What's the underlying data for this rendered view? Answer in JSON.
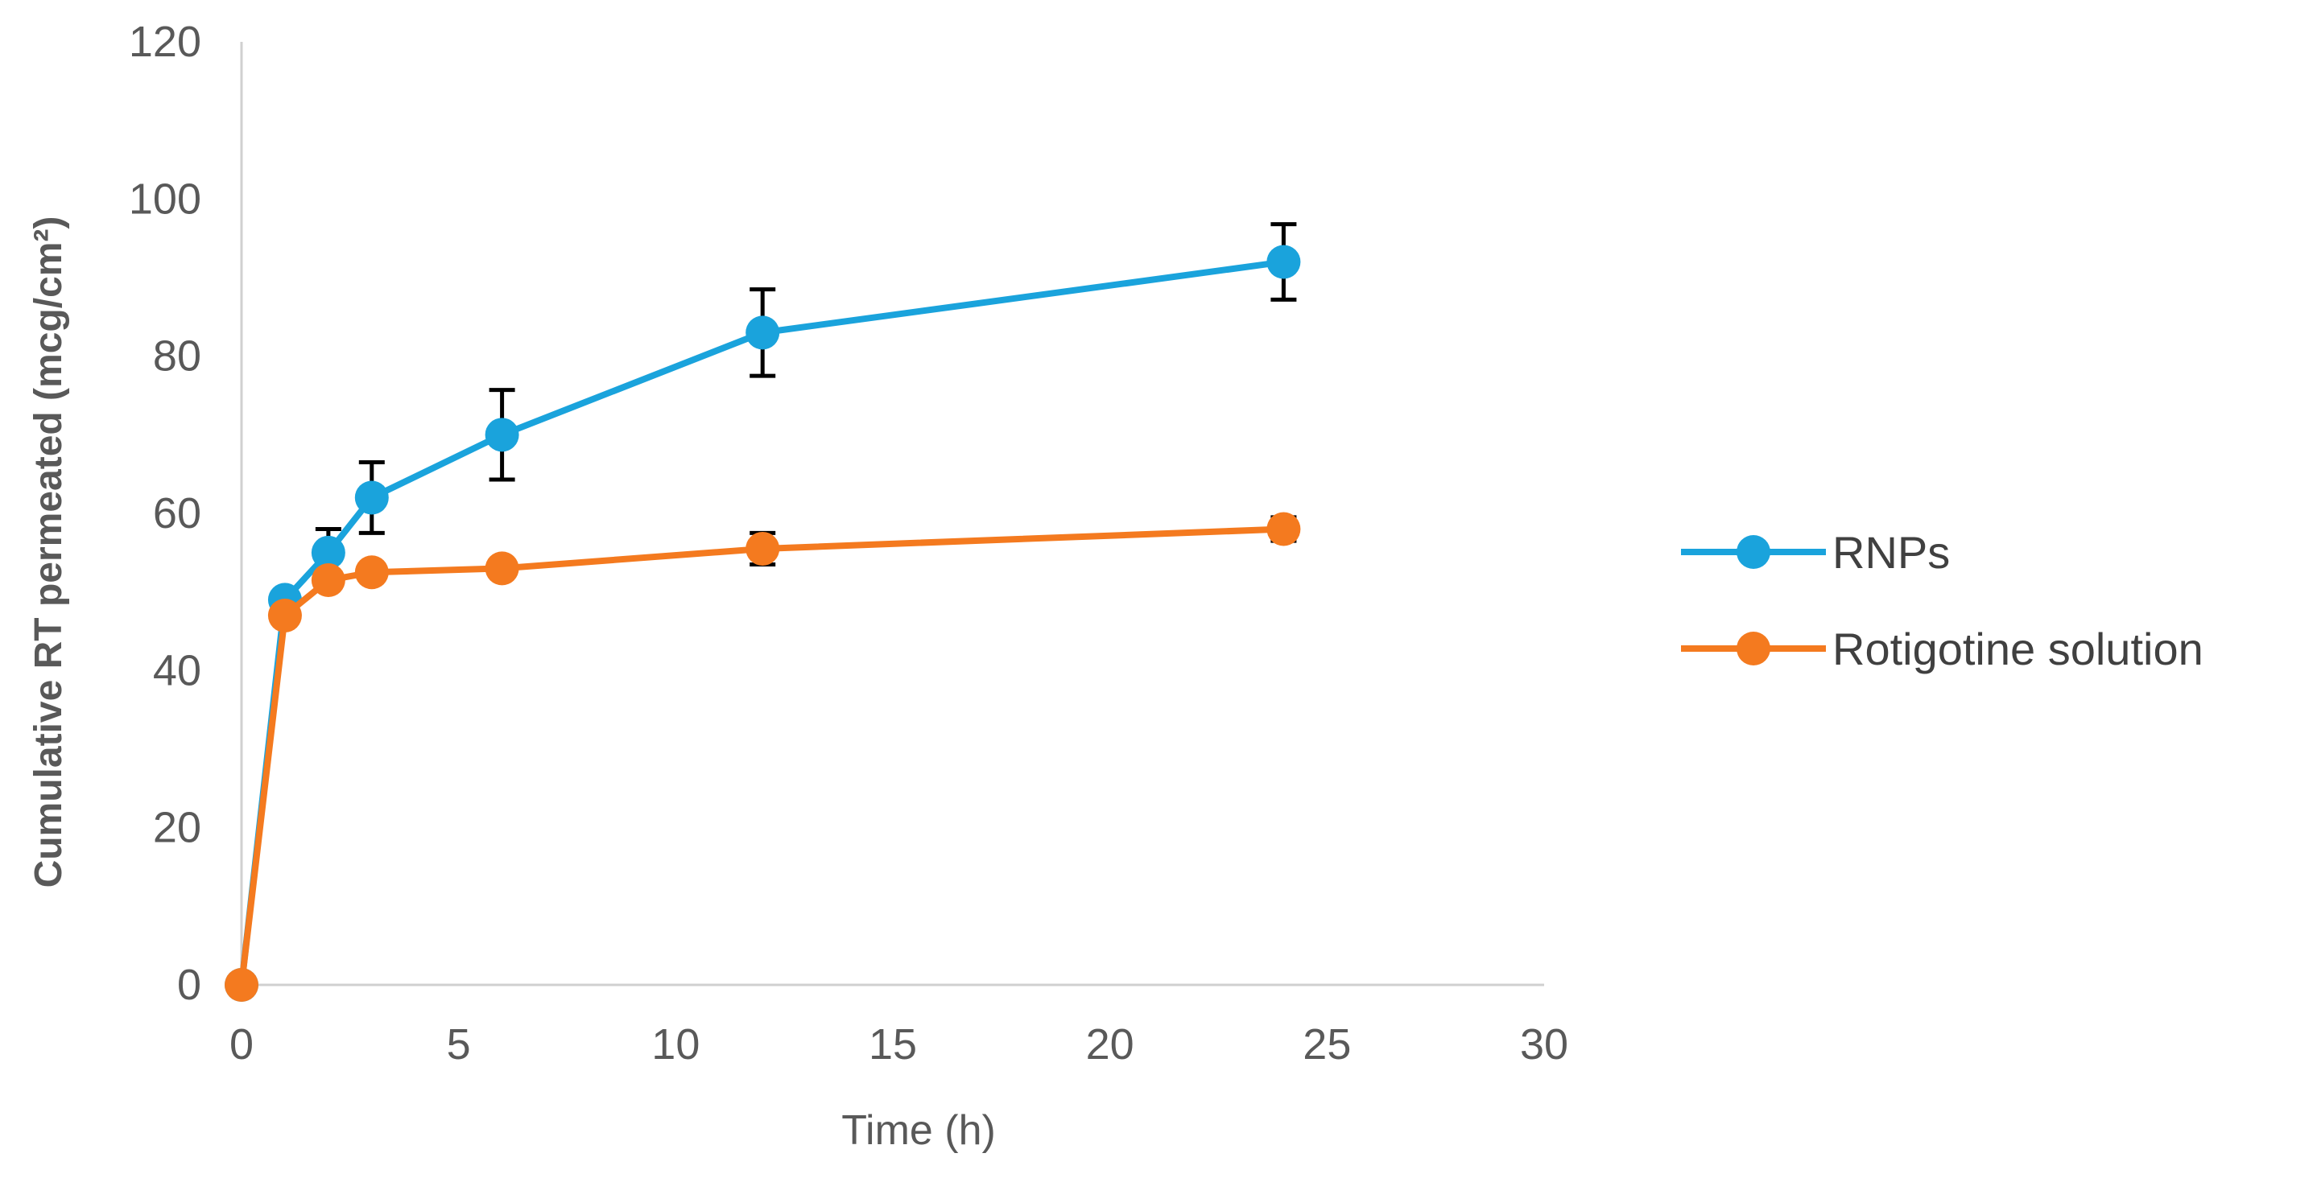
{
  "chart_data": {
    "type": "line",
    "title": "",
    "xlabel": "Time  (h)",
    "ylabel": "Cumulative  RT permeated (mcg/cm²)",
    "xlim": [
      0,
      30
    ],
    "ylim": [
      0,
      120
    ],
    "xticks": [
      0,
      5,
      10,
      15,
      20,
      25,
      30
    ],
    "yticks": [
      0,
      20,
      40,
      60,
      80,
      100,
      120
    ],
    "grid": false,
    "legend_position": "right",
    "x": [
      0,
      1,
      2,
      3,
      6,
      12,
      24
    ],
    "series": [
      {
        "name": "RNPs",
        "color": "#1aa3dc",
        "values": [
          0,
          49,
          55,
          62,
          70,
          83,
          92
        ],
        "errors": [
          0,
          0,
          3,
          4.5,
          5.7,
          5.5,
          4.8
        ]
      },
      {
        "name": "Rotigotine solution",
        "color": "#f47a1f",
        "values": [
          0,
          47,
          51.5,
          52.5,
          53,
          55.5,
          58
        ],
        "errors": [
          0,
          0,
          0,
          0,
          0,
          2,
          1.5
        ]
      }
    ]
  }
}
